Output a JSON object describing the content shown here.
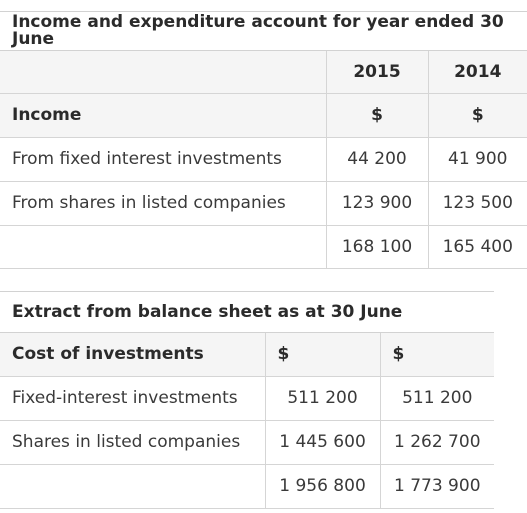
{
  "income_table": {
    "title": "Income and expenditure account for year ended 30 June",
    "years": [
      "2015",
      "2014"
    ],
    "header": {
      "label": "Income",
      "col1": "$",
      "col2": "$"
    },
    "rows": [
      {
        "label": "From fixed interest investments",
        "col1": "44 200",
        "col2": "41 900"
      },
      {
        "label": "From shares in listed companies",
        "col1": "123 900",
        "col2": "123 500"
      }
    ],
    "total": {
      "label": "",
      "col1": "168 100",
      "col2": "165 400"
    }
  },
  "balance_table": {
    "title": "Extract from balance sheet as at 30 June",
    "header": {
      "label": "Cost of investments",
      "col1": "$",
      "col2": "$"
    },
    "rows": [
      {
        "label": "Fixed-interest investments",
        "col1": "511 200",
        "col2": "511 200"
      },
      {
        "label": "Shares in listed companies",
        "col1": "1 445 600",
        "col2": "1 262 700"
      }
    ],
    "total": {
      "label": "",
      "col1": "1 956 800",
      "col2": "1 773 900"
    }
  }
}
